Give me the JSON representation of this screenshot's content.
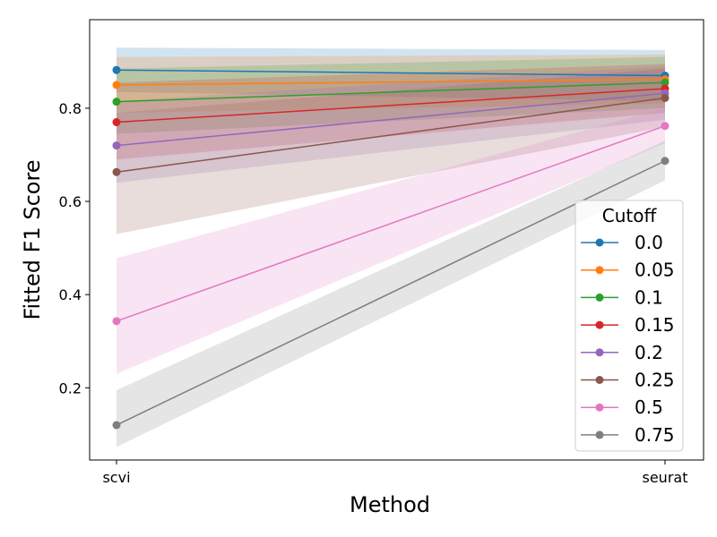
{
  "chart_data": {
    "type": "line",
    "categories": [
      "scvi",
      "seurat"
    ],
    "xlabel": "Method",
    "ylabel": "Fitted F1 Score",
    "ylim": [
      0.045,
      0.99
    ],
    "yticks": [
      "0.2",
      "0.4",
      "0.6",
      "0.8"
    ],
    "grid": false,
    "legend": {
      "title": "Cutoff",
      "placement": "lower-right"
    },
    "series": [
      {
        "name": "0.0",
        "color": "#1f77b4",
        "values": [
          0.882,
          0.87
        ],
        "lower": [
          0.835,
          0.815
        ],
        "upper": [
          0.93,
          0.925
        ]
      },
      {
        "name": "0.05",
        "color": "#ff7f0e",
        "values": [
          0.85,
          0.862
        ],
        "lower": [
          0.79,
          0.81
        ],
        "upper": [
          0.91,
          0.915
        ]
      },
      {
        "name": "0.1",
        "color": "#2ca02c",
        "values": [
          0.814,
          0.855
        ],
        "lower": [
          0.745,
          0.8
        ],
        "upper": [
          0.885,
          0.91
        ]
      },
      {
        "name": "0.15",
        "color": "#d62728",
        "values": [
          0.77,
          0.842
        ],
        "lower": [
          0.69,
          0.79
        ],
        "upper": [
          0.855,
          0.895
        ]
      },
      {
        "name": "0.2",
        "color": "#9467bd",
        "values": [
          0.72,
          0.832
        ],
        "lower": [
          0.64,
          0.775
        ],
        "upper": [
          0.815,
          0.89
        ]
      },
      {
        "name": "0.25",
        "color": "#8c564b",
        "values": [
          0.663,
          0.822
        ],
        "lower": [
          0.53,
          0.76
        ],
        "upper": [
          0.79,
          0.885
        ]
      },
      {
        "name": "0.5",
        "color": "#e377c2",
        "values": [
          0.343,
          0.762
        ],
        "lower": [
          0.23,
          0.725
        ],
        "upper": [
          0.478,
          0.8
        ]
      },
      {
        "name": "0.75",
        "color": "#7f7f7f",
        "values": [
          0.12,
          0.687
        ],
        "lower": [
          0.073,
          0.645
        ],
        "upper": [
          0.195,
          0.73
        ]
      }
    ]
  }
}
